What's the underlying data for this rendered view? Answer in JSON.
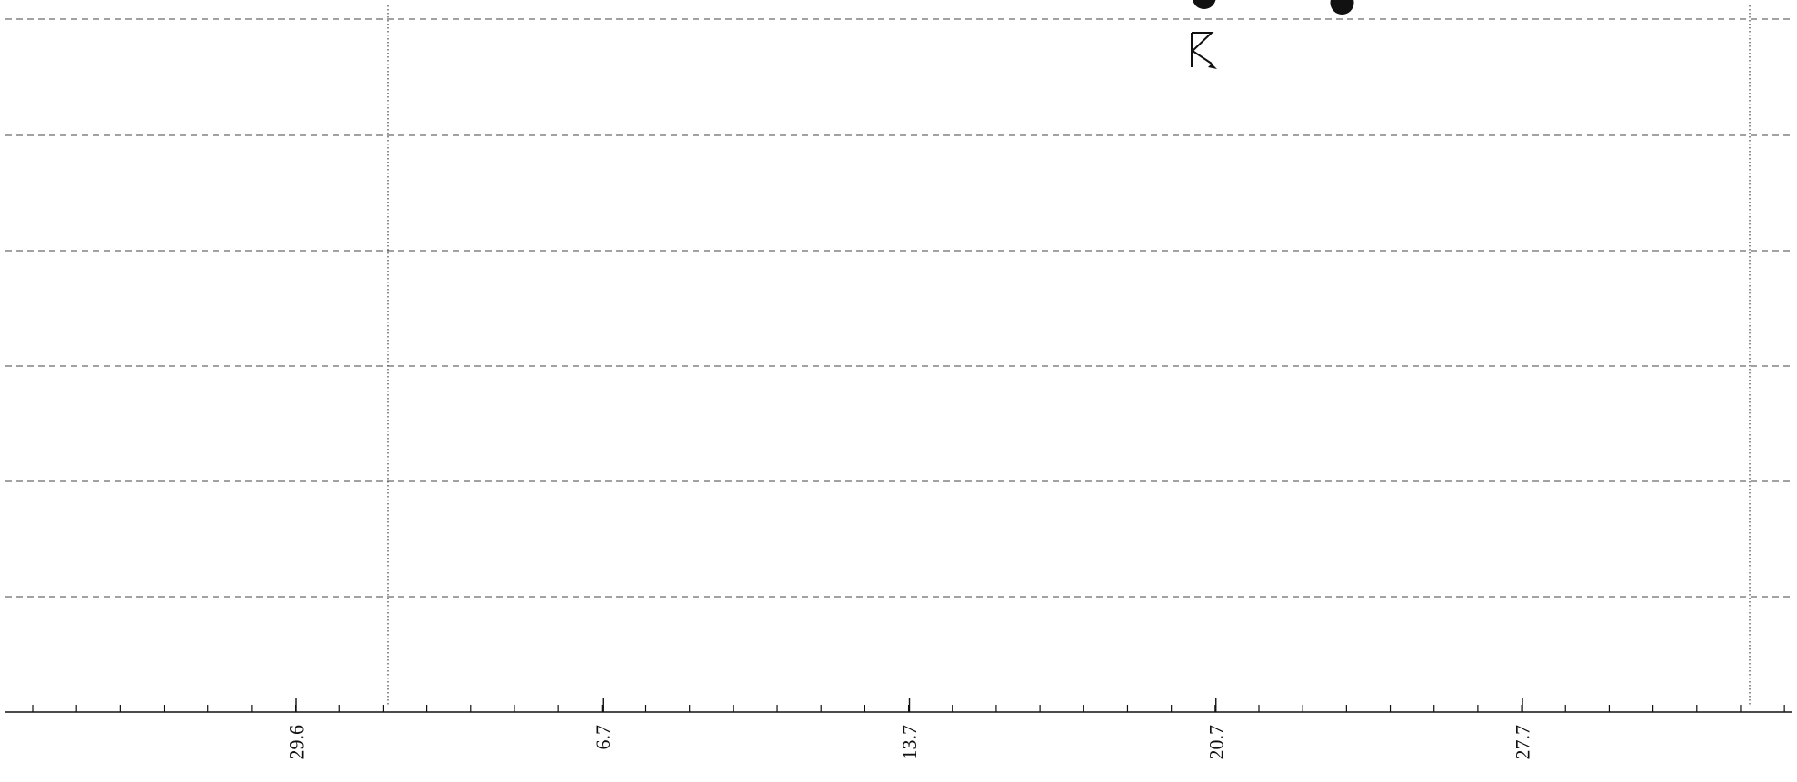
{
  "chart_data": {
    "type": "scatter",
    "title": "",
    "xlabel": "",
    "ylabel": "",
    "x_tick_labels": [
      "29.6",
      "6.7",
      "13.7",
      "20.7",
      "27.7"
    ],
    "grid": {
      "horizontal": "dashed",
      "vertical": "dotted"
    },
    "points": [
      {
        "tick_index": 3.0,
        "partial": true,
        "marker": "filled-circle"
      },
      {
        "tick_index": 3.45,
        "partial": true,
        "marker": "filled-circle"
      }
    ],
    "cursor_icon": "resize-cursor-icon"
  }
}
